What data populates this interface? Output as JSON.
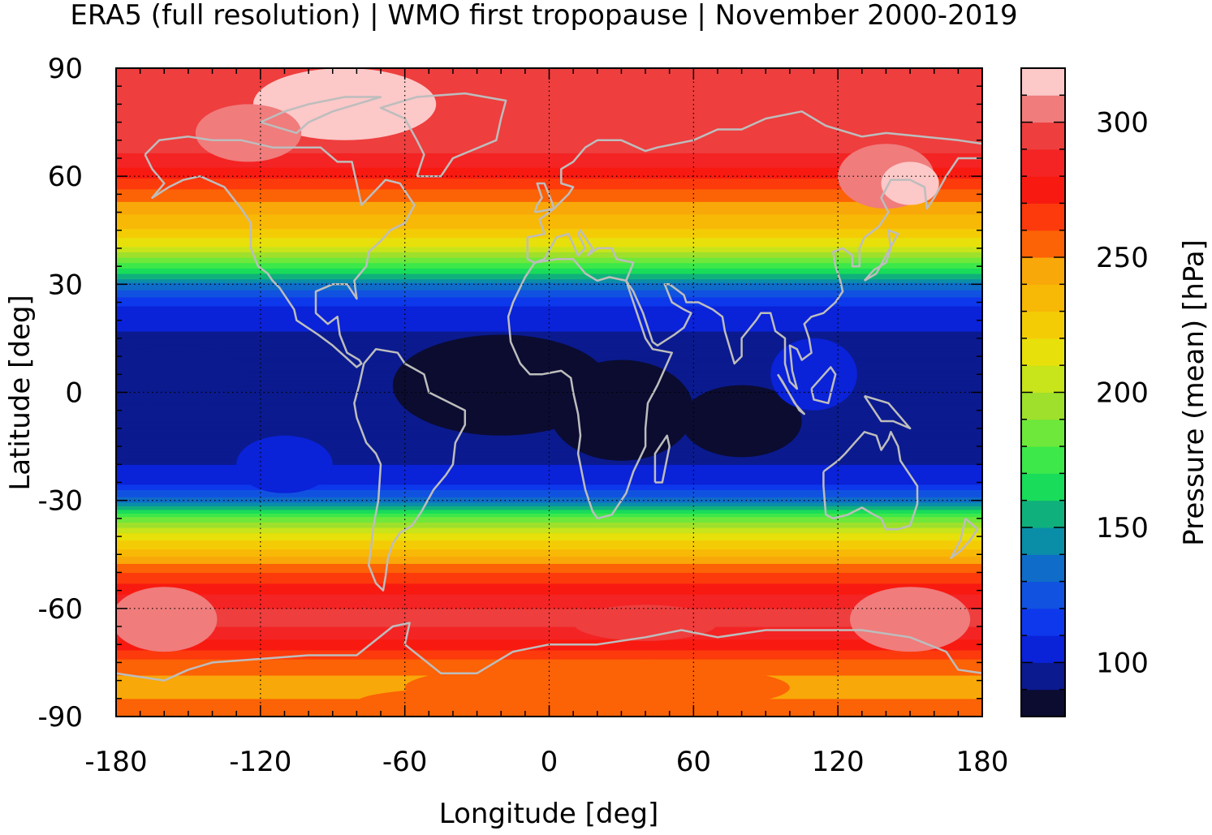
{
  "chart_data": {
    "type": "heatmap",
    "title": "ERA5 (full resolution) | WMO first tropopause | November 2000-2019",
    "xlabel": "Longitude [deg]",
    "ylabel": "Latitude [deg]",
    "xlim": [
      -180,
      180
    ],
    "ylim": [
      -90,
      90
    ],
    "x_ticks": [
      -180,
      -120,
      -60,
      0,
      60,
      120,
      180
    ],
    "y_ticks": [
      90,
      60,
      30,
      0,
      -30,
      -60,
      -90
    ],
    "x_tick_labels": [
      "-180",
      "-120",
      "-60",
      "0",
      "60",
      "120",
      "180"
    ],
    "y_tick_labels": [
      "90",
      "60",
      "30",
      "0",
      "-30",
      "-60",
      "-90"
    ],
    "grid": true,
    "colorbar": {
      "label": "Pressure (mean) [hPa]",
      "range": [
        80,
        320
      ],
      "step": 10,
      "tick_values": [
        300,
        250,
        200,
        150,
        100
      ],
      "tick_labels": [
        "300",
        "250",
        "200",
        "150",
        "100"
      ],
      "colors": [
        "#0b0c30",
        "#0b1a8e",
        "#0a22d8",
        "#0d38ec",
        "#1152e0",
        "#0f6cc8",
        "#0a8ea8",
        "#10b07c",
        "#18dc5a",
        "#3ce84a",
        "#6ee83a",
        "#9ee02c",
        "#c8e41a",
        "#e8e00a",
        "#f4cc06",
        "#f8b806",
        "#f8a808",
        "#fc6206",
        "#fc3a0c",
        "#f81a10",
        "#f42424",
        "#ee3e3e",
        "#f07c7c",
        "#fcc8c8"
      ]
    },
    "zonal_mean_profile": {
      "latitude": [
        -90,
        -85,
        -80,
        -75,
        -70,
        -65,
        -60,
        -55,
        -50,
        -45,
        -40,
        -35,
        -30,
        -25,
        -20,
        -15,
        -10,
        -5,
        0,
        5,
        10,
        15,
        20,
        25,
        30,
        35,
        40,
        45,
        50,
        55,
        60,
        65,
        70,
        75,
        80,
        85,
        90
      ],
      "pressure_hpa": [
        258,
        250,
        248,
        255,
        275,
        290,
        290,
        278,
        260,
        238,
        215,
        185,
        135,
        108,
        100,
        96,
        93,
        92,
        92,
        93,
        95,
        98,
        103,
        112,
        138,
        175,
        208,
        228,
        242,
        255,
        272,
        288,
        295,
        298,
        298,
        295,
        292
      ]
    },
    "overlay": "coastlines"
  }
}
